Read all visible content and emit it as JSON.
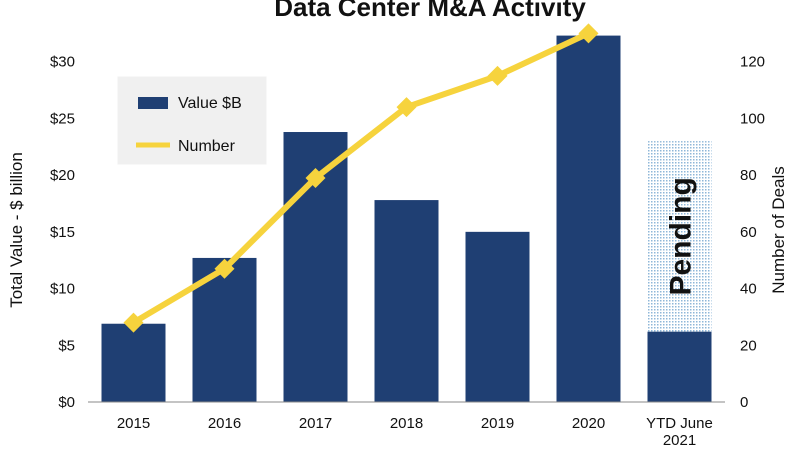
{
  "chart_data": {
    "type": "bar",
    "title": "Data Center M&A Activity",
    "categories": [
      "2015",
      "2016",
      "2017",
      "2018",
      "2019",
      "2020",
      "YTD June 2021"
    ],
    "series": [
      {
        "name": "Value $B",
        "type": "bar",
        "axis": "left",
        "values": [
          6.9,
          12.7,
          23.8,
          17.8,
          15.0,
          32.3,
          6.2
        ]
      },
      {
        "name": "Number",
        "type": "line",
        "axis": "right",
        "values": [
          28,
          47,
          79,
          104,
          115,
          130,
          null
        ]
      }
    ],
    "pending": {
      "label": "Pending",
      "category": "YTD June 2021",
      "from": 6.2,
      "to": 23.0
    },
    "ylabel": "Total Value - $ billion",
    "y2label": "Number of Deals",
    "ylim": [
      0,
      32
    ],
    "y2lim": [
      0,
      128
    ],
    "yticks": [
      "$0",
      "$5",
      "$10",
      "$15",
      "$20",
      "$25",
      "$30"
    ],
    "y2ticks": [
      "0",
      "20",
      "40",
      "60",
      "80",
      "100",
      "120"
    ],
    "legend_position": "top-left",
    "grid": false,
    "colors": {
      "bar": "#1f3f73",
      "line": "#f6d33d",
      "pending": "#c9dff0"
    }
  }
}
